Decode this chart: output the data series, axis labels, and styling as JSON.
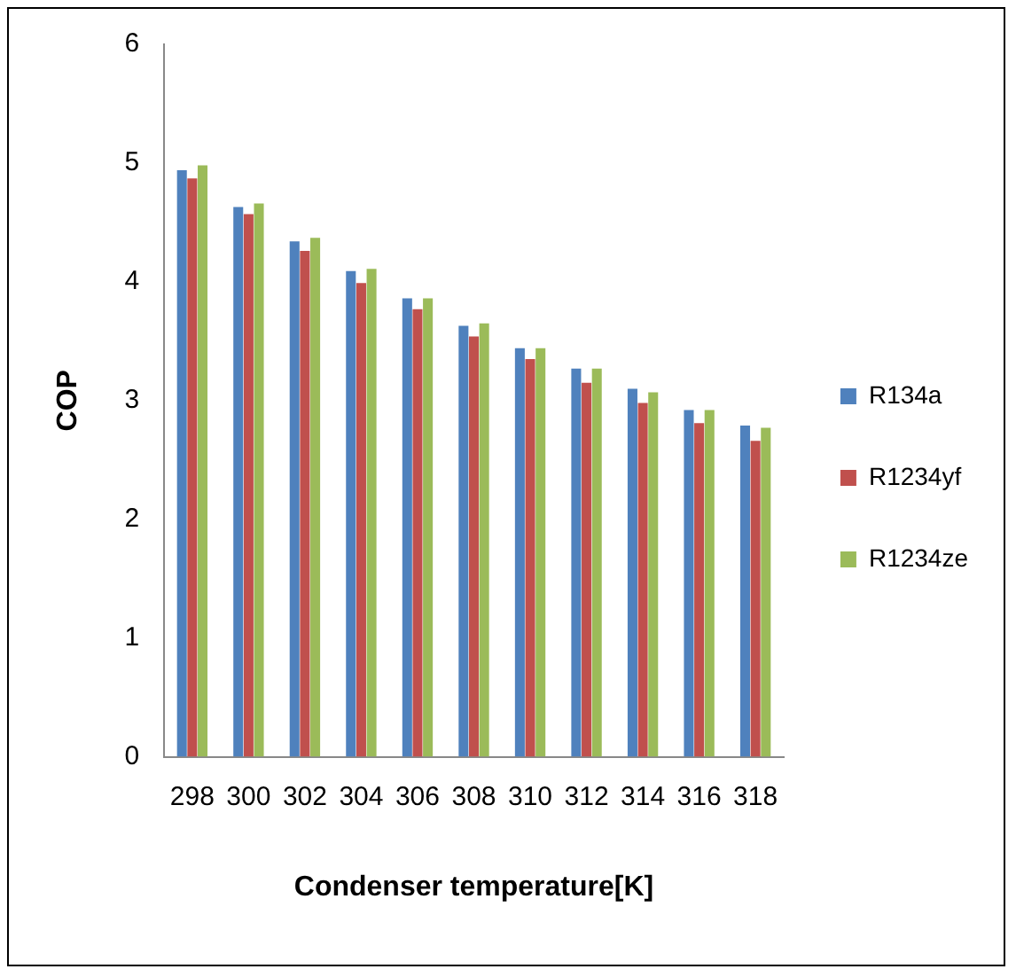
{
  "chart_data": {
    "type": "bar",
    "xlabel": "Condenser temperature[K]",
    "ylabel": "COP",
    "categories": [
      "298",
      "300",
      "302",
      "304",
      "306",
      "308",
      "310",
      "312",
      "314",
      "316",
      "318"
    ],
    "series": [
      {
        "name": "R134a",
        "color": "#4f81bd",
        "values": [
          4.94,
          4.63,
          4.34,
          4.09,
          3.86,
          3.63,
          3.44,
          3.27,
          3.1,
          2.92,
          2.79
        ]
      },
      {
        "name": "R1234yf",
        "color": "#c0504d",
        "values": [
          4.87,
          4.57,
          4.26,
          3.99,
          3.77,
          3.54,
          3.35,
          3.15,
          2.98,
          2.81,
          2.66
        ]
      },
      {
        "name": "R1234ze",
        "color": "#9bbb59",
        "values": [
          4.98,
          4.66,
          4.37,
          4.11,
          3.86,
          3.65,
          3.44,
          3.27,
          3.07,
          2.92,
          2.77
        ]
      }
    ],
    "ylim": [
      0,
      6
    ],
    "yticks": [
      0,
      1,
      2,
      3,
      4,
      5,
      6
    ],
    "grid": false,
    "legend": "right"
  }
}
